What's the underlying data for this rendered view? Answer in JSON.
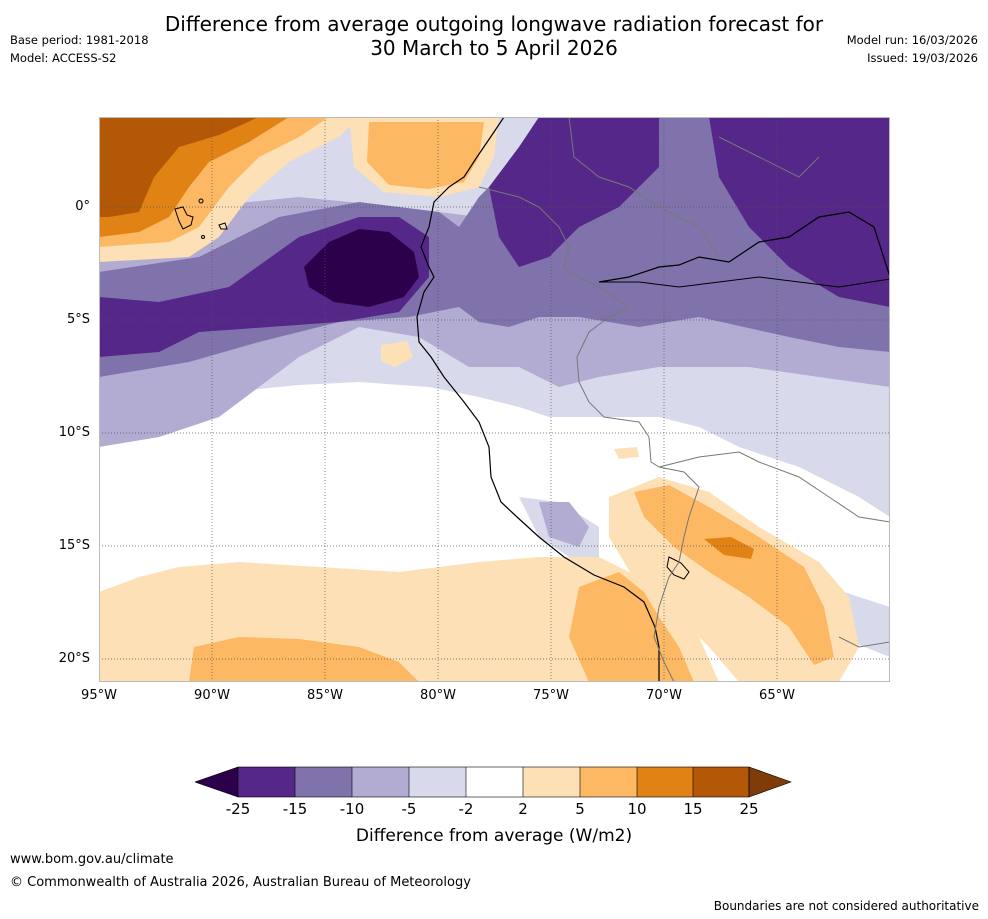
{
  "title": {
    "line1": "Difference from average outgoing longwave radiation forecast for",
    "line2": "30 March to 5 April 2026"
  },
  "meta_left": {
    "base_period": "Base period: 1981-2018",
    "model": "Model: ACCESS-S2"
  },
  "meta_right": {
    "model_run": "Model run: 16/03/2026",
    "issued": "Issued: 19/03/2026"
  },
  "map": {
    "lat_labels": [
      "0°",
      "5°S",
      "10°S",
      "15°S",
      "20°S"
    ],
    "lon_labels": [
      "95°W",
      "90°W",
      "85°W",
      "80°W",
      "75°W",
      "70°W",
      "65°W"
    ]
  },
  "colorbar": {
    "ticks": [
      "-25",
      "-15",
      "-10",
      "-5",
      "-2",
      "2",
      "5",
      "10",
      "15",
      "25"
    ],
    "colors": [
      "#2d004b",
      "#542788",
      "#8073ac",
      "#b2abd2",
      "#d8daeb",
      "#ffffff",
      "#fee0b6",
      "#fdb863",
      "#e08214",
      "#b35806",
      "#7f3b08"
    ],
    "label": "Difference from average (W/m2)"
  },
  "footer": {
    "url": "www.bom.gov.au/climate",
    "copyright": "© Commonwealth of Australia 2026, Australian Bureau of Meteorology",
    "disclaimer": "Boundaries are not considered authoritative"
  }
}
